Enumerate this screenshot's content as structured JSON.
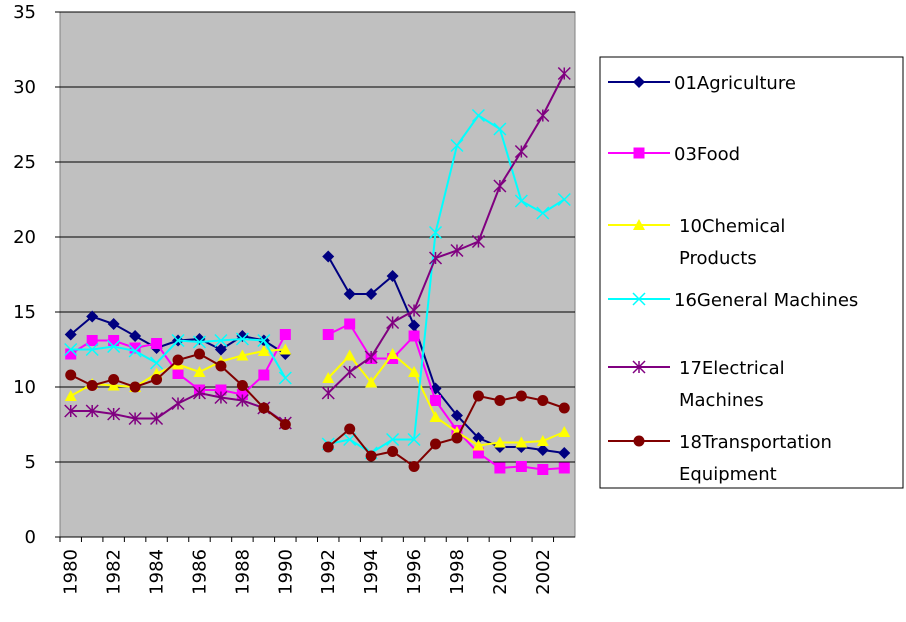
{
  "chart_data": {
    "type": "line",
    "categories": [
      "1980",
      null,
      "1982",
      null,
      "1984",
      null,
      "1986",
      null,
      "1988",
      null,
      "1990",
      null,
      "1992",
      null,
      "1994",
      null,
      "1996",
      null,
      "1998",
      null,
      "2000",
      null,
      "2002",
      null
    ],
    "series": [
      {
        "name": "01Agriculture",
        "color": "#000080",
        "marker": "diamond",
        "values": [
          13.5,
          14.7,
          14.2,
          13.4,
          12.6,
          13.1,
          13.2,
          12.5,
          13.4,
          13.1,
          12.2,
          null,
          18.7,
          16.2,
          16.2,
          17.4,
          14.1,
          9.9,
          8.1,
          6.6,
          6.0,
          6.0,
          5.8,
          5.6
        ]
      },
      {
        "name": "03Food",
        "color": "#ff00ff",
        "marker": "square",
        "values": [
          12.2,
          13.1,
          13.1,
          12.6,
          12.9,
          10.9,
          9.8,
          9.8,
          9.5,
          10.8,
          13.5,
          null,
          13.5,
          14.2,
          11.9,
          11.9,
          13.4,
          9.1,
          7.1,
          5.6,
          4.6,
          4.7,
          4.5,
          4.6
        ]
      },
      {
        "name": "10Chemical Products",
        "color": "#ffff00",
        "marker": "triangle",
        "values": [
          9.4,
          10.2,
          10.1,
          10.0,
          10.9,
          11.5,
          11.0,
          11.7,
          12.1,
          12.4,
          12.5,
          null,
          10.6,
          12.1,
          10.3,
          12.2,
          11.0,
          8.0,
          7.0,
          6.1,
          6.3,
          6.3,
          6.4,
          7.0
        ]
      },
      {
        "name": "16General Machines",
        "color": "#00ffff",
        "marker": "x",
        "values": [
          12.5,
          12.5,
          12.7,
          12.4,
          11.6,
          13.1,
          13.0,
          13.1,
          13.2,
          13.1,
          10.6,
          null,
          6.2,
          6.5,
          5.6,
          6.5,
          6.5,
          20.3,
          26.1,
          28.1,
          27.2,
          22.4,
          21.6,
          22.5
        ]
      },
      {
        "name": "17Electrical Machines",
        "color": "#800080",
        "marker": "asterisk",
        "values": [
          8.4,
          8.4,
          8.2,
          7.9,
          7.9,
          8.9,
          9.6,
          9.3,
          9.1,
          8.6,
          7.6,
          null,
          9.6,
          11.0,
          12.0,
          14.3,
          15.1,
          18.6,
          19.1,
          19.7,
          23.4,
          25.7,
          28.1,
          30.9
        ]
      },
      {
        "name": "18Transportation Equipment",
        "color": "#800000",
        "marker": "circle",
        "values": [
          10.8,
          10.1,
          10.5,
          10.0,
          10.5,
          11.8,
          12.2,
          11.4,
          10.1,
          8.6,
          7.5,
          null,
          6.0,
          7.2,
          5.4,
          5.7,
          4.7,
          6.2,
          6.6,
          9.4,
          9.1,
          9.4,
          9.1,
          8.6
        ]
      }
    ],
    "ylim": [
      0,
      35
    ],
    "yticks": [
      0,
      5,
      10,
      15,
      20,
      25,
      30,
      35
    ],
    "grid": true,
    "legend": "right"
  }
}
